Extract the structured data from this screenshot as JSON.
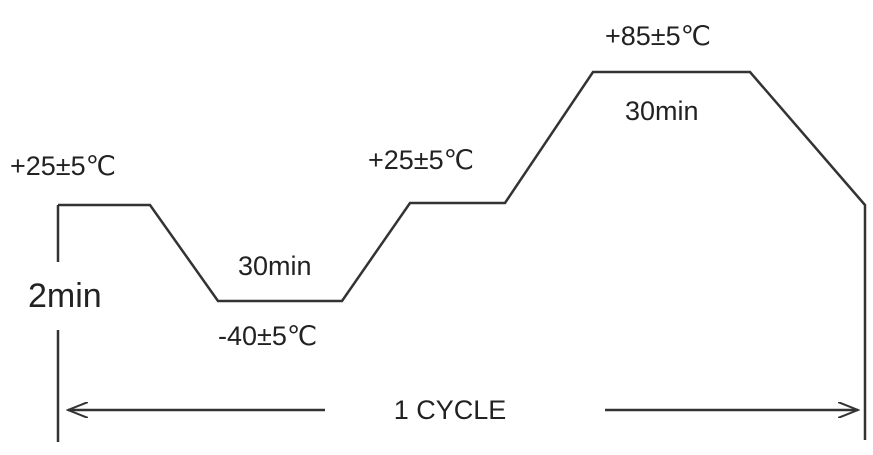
{
  "labels": {
    "start_temp": "+25±5℃",
    "start_duration": "2min",
    "low_temp": "-40±5℃",
    "low_duration": "30min",
    "mid_temp": "+25±5℃",
    "high_temp": "+85±5℃",
    "high_duration": "30min",
    "cycle": "1 CYCLE"
  }
}
